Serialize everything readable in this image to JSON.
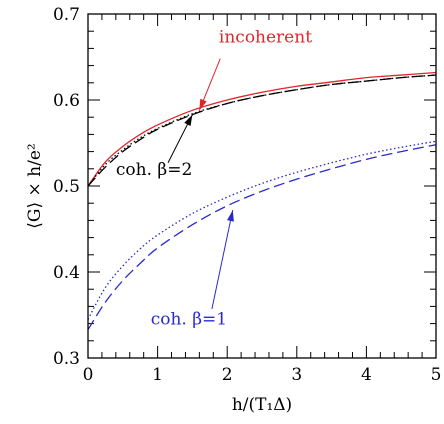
{
  "chart_data": {
    "type": "line",
    "xlabel": "h/(T₁Δ)",
    "ylabel": "⟨G⟩ × h/e²",
    "xlim": [
      0,
      5
    ],
    "ylim": [
      0.3,
      0.7
    ],
    "x_ticks": [
      0,
      1,
      2,
      3,
      4,
      5
    ],
    "y_ticks": [
      0.3,
      0.4,
      0.5,
      0.6,
      0.7
    ],
    "x_tick_labels": [
      "0",
      "1",
      "2",
      "3",
      "4",
      "5"
    ],
    "y_tick_labels": [
      "0.3",
      "0.4",
      "0.5",
      "0.6",
      "0.7"
    ],
    "grid": false,
    "series": [
      {
        "key": "incoherent",
        "color": "#e0262a",
        "style": "solid",
        "x": [
          0,
          0.25,
          0.5,
          0.75,
          1,
          1.5,
          2,
          2.5,
          3,
          3.5,
          4,
          4.5,
          5
        ],
        "y": [
          0.5,
          0.528,
          0.546,
          0.56,
          0.571,
          0.588,
          0.6,
          0.609,
          0.616,
          0.621,
          0.626,
          0.629,
          0.632
        ]
      },
      {
        "key": "coh_beta2_dotted",
        "color": "#000000",
        "style": "dotted",
        "x": [
          0,
          0.25,
          0.5,
          0.75,
          1,
          1.5,
          2,
          2.5,
          3,
          3.5,
          4,
          4.5,
          5
        ],
        "y": [
          0.5,
          0.525,
          0.542,
          0.556,
          0.567,
          0.584,
          0.596,
          0.605,
          0.612,
          0.618,
          0.622,
          0.626,
          0.629
        ]
      },
      {
        "key": "coh_beta2_dashed",
        "color": "#000000",
        "style": "dashed",
        "x": [
          0,
          0.25,
          0.5,
          0.75,
          1,
          1.5,
          2,
          2.5,
          3,
          3.5,
          4,
          4.5,
          5
        ],
        "y": [
          0.5,
          0.522,
          0.54,
          0.554,
          0.566,
          0.583,
          0.596,
          0.605,
          0.612,
          0.618,
          0.622,
          0.626,
          0.629
        ]
      },
      {
        "key": "coh_beta1_dotted",
        "color": "#2a2acc",
        "style": "dotted",
        "x": [
          0,
          0.25,
          0.5,
          0.75,
          1,
          1.5,
          2,
          2.5,
          3,
          3.5,
          4,
          4.5,
          5
        ],
        "y": [
          0.345,
          0.382,
          0.407,
          0.427,
          0.443,
          0.468,
          0.487,
          0.503,
          0.516,
          0.527,
          0.537,
          0.545,
          0.552
        ]
      },
      {
        "key": "coh_beta1_dashed",
        "color": "#2a2acc",
        "style": "dashed",
        "x": [
          0,
          0.25,
          0.5,
          0.75,
          1,
          1.5,
          2,
          2.5,
          3,
          3.5,
          4,
          4.5,
          5
        ],
        "y": [
          0.333,
          0.365,
          0.39,
          0.41,
          0.428,
          0.455,
          0.477,
          0.494,
          0.508,
          0.52,
          0.531,
          0.54,
          0.548
        ]
      }
    ],
    "annotations": [
      {
        "key": "incoherent",
        "text": "incoherent",
        "color": "#e0262a",
        "x": 2.55,
        "y": 0.667,
        "arrow_from": [
          1.9,
          0.648
        ],
        "arrow_to": [
          1.6,
          0.588
        ]
      },
      {
        "key": "beta2",
        "text": "coh. β=2",
        "color": "#000000",
        "x": 0.95,
        "y": 0.513,
        "arrow_from": [
          1.15,
          0.527
        ],
        "arrow_to": [
          1.5,
          0.583
        ]
      },
      {
        "key": "beta1",
        "text": "coh. β=1",
        "color": "#2a2acc",
        "x": 1.45,
        "y": 0.339,
        "arrow_from": [
          1.78,
          0.357
        ],
        "arrow_to": [
          2.08,
          0.472
        ]
      }
    ]
  }
}
